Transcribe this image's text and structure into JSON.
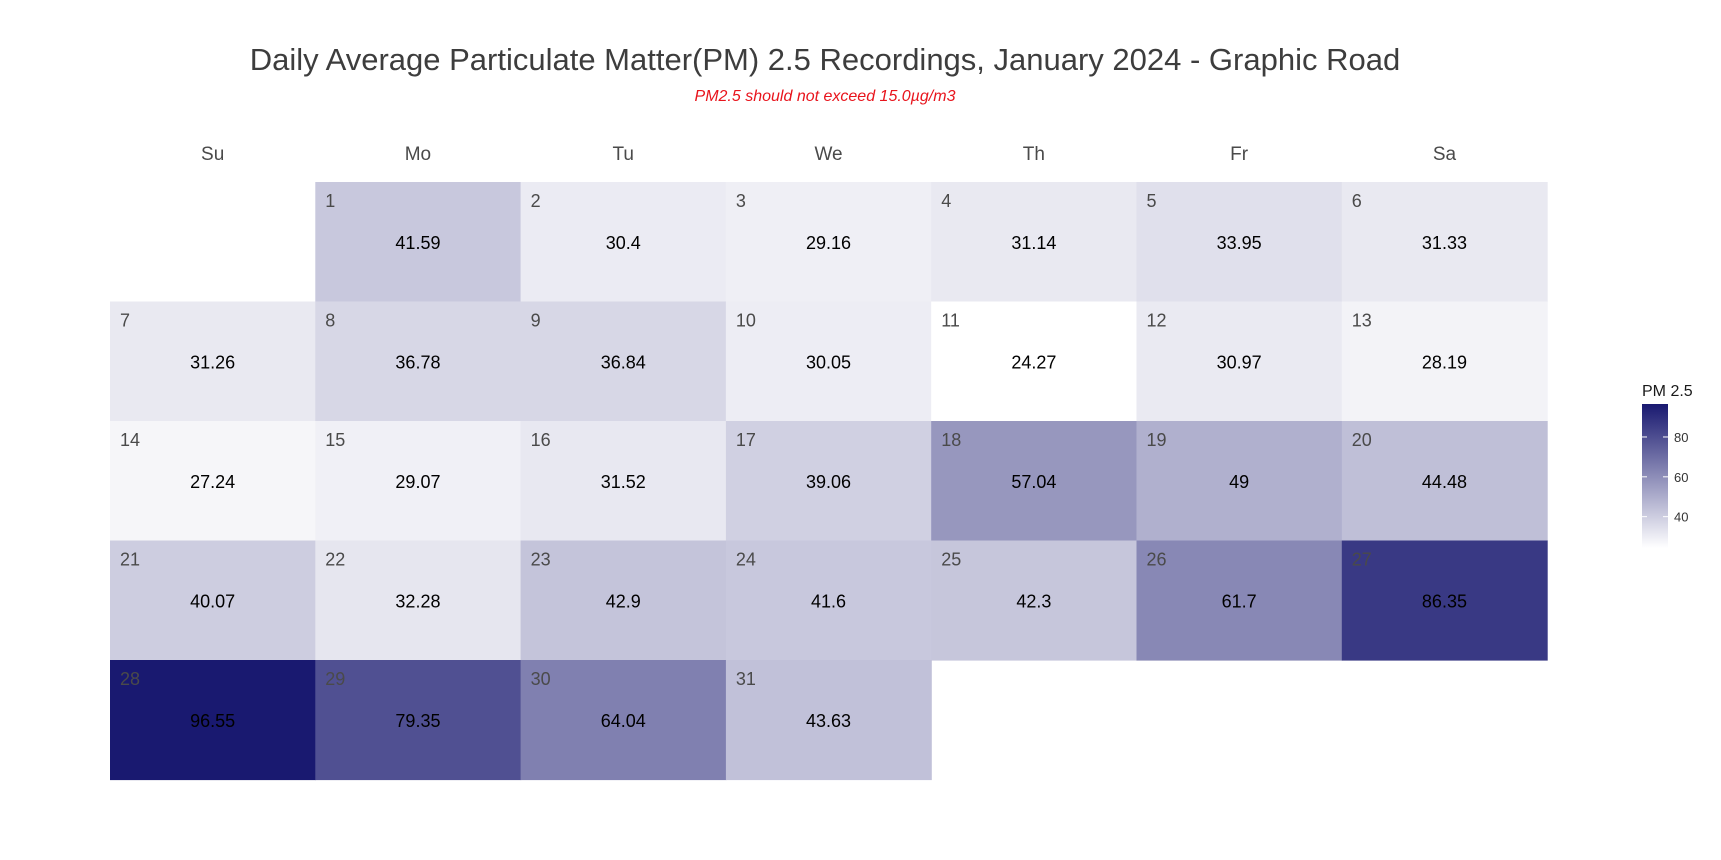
{
  "chart_data": {
    "type": "heatmap",
    "title": "Daily Average Particulate Matter(PM) 2.5 Recordings, January 2024 - Graphic Road",
    "subtitle": "PM2.5 should not exceed 15.0µg/m3",
    "weekdays": [
      "Su",
      "Mo",
      "Tu",
      "We",
      "Th",
      "Fr",
      "Sa"
    ],
    "first_weekday_index": 1,
    "days": [
      1,
      2,
      3,
      4,
      5,
      6,
      7,
      8,
      9,
      10,
      11,
      12,
      13,
      14,
      15,
      16,
      17,
      18,
      19,
      20,
      21,
      22,
      23,
      24,
      25,
      26,
      27,
      28,
      29,
      30,
      31
    ],
    "values": [
      "41.59",
      "30.4",
      "29.16",
      "31.14",
      "33.95",
      "31.33",
      "31.26",
      "36.78",
      "36.84",
      "30.05",
      "24.27",
      "30.97",
      "28.19",
      "27.24",
      "29.07",
      "31.52",
      "39.06",
      "57.04",
      "49",
      "44.48",
      "40.07",
      "32.28",
      "42.9",
      "41.6",
      "42.3",
      "61.7",
      "86.35",
      "96.55",
      "79.35",
      "64.04",
      "43.63"
    ],
    "legend": {
      "title": "PM 2.5",
      "ticks": [
        40,
        60,
        80
      ],
      "range": [
        24.27,
        96.55
      ],
      "low_color": "#ffffff",
      "high_color": "#191970"
    }
  }
}
